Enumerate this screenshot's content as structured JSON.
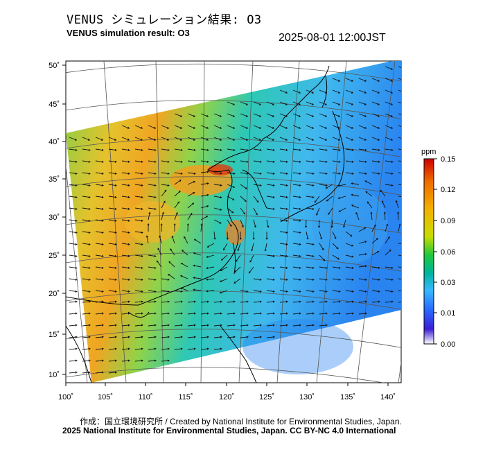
{
  "header": {
    "title_jp": "VENUS シミュレーション結果: O3",
    "title_en": "VENUS simulation result: O3",
    "timestamp": "2025-08-01 12:00JST"
  },
  "map": {
    "lon_ticks": [
      "100˚",
      "105˚",
      "110˚",
      "115˚",
      "120˚",
      "125˚",
      "130˚",
      "135˚",
      "140˚"
    ],
    "lat_ticks": [
      "50˚",
      "45˚",
      "40˚",
      "35˚",
      "30˚",
      "25˚",
      "20˚",
      "15˚",
      "10˚"
    ],
    "colors": {
      "background": "#ffffff",
      "land_line": "#000000",
      "grid_line": "#555555"
    }
  },
  "colorbar": {
    "unit": "ppm",
    "labels": [
      "0.15",
      "0.12",
      "0.09",
      "0.06",
      "0.03",
      "0.01",
      "0.00"
    ],
    "stops": [
      "#cc0000",
      "#ee6a00",
      "#f2b400",
      "#c8dc00",
      "#1ec83c",
      "#00b4a0",
      "#38b8ff",
      "#2a66ff",
      "#3a1ed2",
      "#ffffff"
    ]
  },
  "footer": {
    "credit": "作成：国立環境研究所 / Created by National Institute for Environmental Studies, Japan.",
    "license": "2025 National Institute for Environmental Studies, Japan. CC BY-NC 4.0 International"
  }
}
